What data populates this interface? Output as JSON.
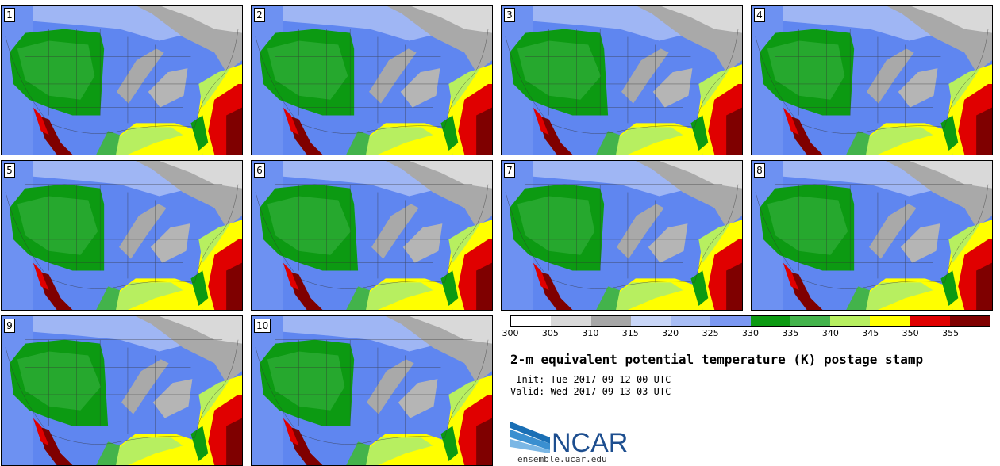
{
  "panels": [
    {
      "label": "1"
    },
    {
      "label": "2"
    },
    {
      "label": "3"
    },
    {
      "label": "4"
    },
    {
      "label": "5"
    },
    {
      "label": "6"
    },
    {
      "label": "7"
    },
    {
      "label": "8"
    },
    {
      "label": "9"
    },
    {
      "label": "10"
    }
  ],
  "colorbar": {
    "colors": [
      "#ffffff",
      "#d9d9d9",
      "#a6a6a6",
      "#c9d6f7",
      "#a8bdf5",
      "#7b98f2",
      "#0c9a12",
      "#43b34b",
      "#b7ef60",
      "#ffff00",
      "#e00000",
      "#7f0000"
    ],
    "ticks": [
      "300",
      "305",
      "310",
      "315",
      "320",
      "325",
      "330",
      "335",
      "340",
      "345",
      "350",
      "355"
    ]
  },
  "title": "2-m equivalent potential temperature (K) postage stamp",
  "init_line": " Init: Tue 2017-09-12 00 UTC",
  "valid_line": "Valid: Wed 2017-09-13 03 UTC",
  "logo": {
    "text": "NCAR",
    "url": "ensemble.ucar.edu"
  }
}
